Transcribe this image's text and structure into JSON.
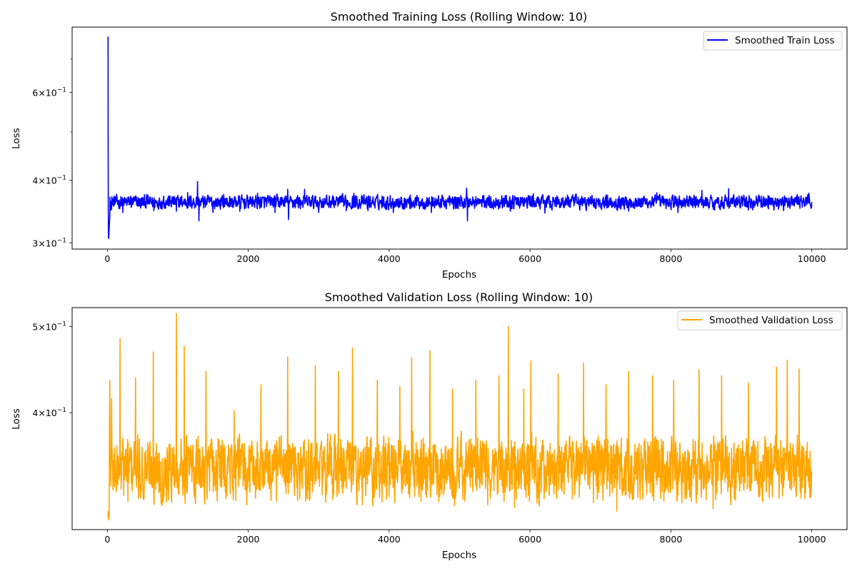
{
  "chart_data": [
    {
      "type": "line",
      "title": "Smoothed Training Loss (Rolling Window: 10)",
      "xlabel": "Epochs",
      "ylabel": "Loss",
      "yscale": "log",
      "xlim": [
        -500,
        10500
      ],
      "ylim": [
        0.2915,
        0.81
      ],
      "xticks": [
        {
          "value": 0,
          "label": "0"
        },
        {
          "value": 2000,
          "label": "2000"
        },
        {
          "value": 4000,
          "label": "4000"
        },
        {
          "value": 6000,
          "label": "6000"
        },
        {
          "value": 8000,
          "label": "8000"
        },
        {
          "value": 10000,
          "label": "10000"
        }
      ],
      "yticks_major": [
        {
          "value": 0.3,
          "mantissa": "3",
          "base": "10",
          "exponent": "−1"
        },
        {
          "value": 0.4,
          "mantissa": "4",
          "base": "10",
          "exponent": "−1"
        },
        {
          "value": 0.6,
          "mantissa": "6",
          "base": "10",
          "exponent": "−1"
        }
      ],
      "yticks_minor": [
        0.5,
        0.7
      ],
      "legend": {
        "position": "upper-right",
        "label": "Smoothed Train Loss"
      },
      "grid": false,
      "series": [
        {
          "name": "Smoothed Train Loss",
          "color": "#0000ff",
          "noise": {
            "seed": 12345,
            "x_start": 40,
            "x_end": 10000,
            "step": 4,
            "base": 0.362,
            "amplitude": 0.011
          },
          "x": [
            9,
            10,
            11,
            13,
            15,
            18,
            22,
            28,
            35,
            38,
            45,
            60,
            110,
            220,
            330,
            470,
            560,
            660,
            800,
            980,
            1140,
            1280,
            1300,
            1500,
            1650,
            1880,
            2130,
            2380,
            2560,
            2570,
            2700,
            2800,
            3000,
            3200,
            3390,
            3500,
            3700,
            3900,
            4060,
            4300,
            4600,
            4850,
            5100,
            5110,
            5400,
            5720,
            6000,
            6210,
            6530,
            6800,
            7100,
            7400,
            7620,
            7800,
            8100,
            8440,
            8620,
            8820,
            9100,
            9380,
            9600,
            9800,
            9960,
            10000
          ],
          "y": [
            0.775,
            0.775,
            0.52,
            0.36,
            0.31,
            0.306,
            0.31,
            0.325,
            0.34,
            0.37,
            0.36,
            0.35,
            0.37,
            0.345,
            0.372,
            0.352,
            0.375,
            0.348,
            0.372,
            0.347,
            0.378,
            0.398,
            0.332,
            0.345,
            0.375,
            0.347,
            0.377,
            0.345,
            0.384,
            0.334,
            0.373,
            0.384,
            0.345,
            0.373,
            0.348,
            0.377,
            0.348,
            0.372,
            0.345,
            0.374,
            0.345,
            0.371,
            0.386,
            0.332,
            0.37,
            0.347,
            0.372,
            0.344,
            0.374,
            0.348,
            0.373,
            0.347,
            0.372,
            0.378,
            0.345,
            0.382,
            0.349,
            0.385,
            0.349,
            0.373,
            0.348,
            0.371,
            0.377,
            0.362
          ]
        }
      ]
    },
    {
      "type": "line",
      "title": "Smoothed Validation Loss (Rolling Window: 10)",
      "xlabel": "Epochs",
      "ylabel": "Loss",
      "yscale": "log",
      "xlim": [
        -500,
        10500
      ],
      "ylim": [
        0.2955,
        0.525
      ],
      "xticks": [
        {
          "value": 0,
          "label": "0"
        },
        {
          "value": 2000,
          "label": "2000"
        },
        {
          "value": 4000,
          "label": "4000"
        },
        {
          "value": 6000,
          "label": "6000"
        },
        {
          "value": 8000,
          "label": "8000"
        },
        {
          "value": 10000,
          "label": "10000"
        }
      ],
      "yticks_major": [
        {
          "value": 0.4,
          "mantissa": "4",
          "base": "10",
          "exponent": "−1"
        },
        {
          "value": 0.5,
          "mantissa": "5",
          "base": "10",
          "exponent": "−1"
        }
      ],
      "yticks_minor": [],
      "legend": {
        "position": "upper-right",
        "label": "Smoothed Validation Loss"
      },
      "grid": false,
      "series": [
        {
          "name": "Smoothed Validation Loss",
          "color": "#ffa500",
          "noise": {
            "seed": 67890,
            "x_start": 40,
            "x_end": 10000,
            "step": 4,
            "base": 0.347,
            "amplitude": 0.027
          },
          "x": [
            9,
            12,
            15,
            20,
            25,
            30,
            35,
            45,
            60,
            100,
            180,
            290,
            400,
            520,
            650,
            770,
            980,
            1090,
            1250,
            1400,
            1560,
            1800,
            1980,
            2180,
            2400,
            2560,
            2730,
            2950,
            3100,
            3280,
            3480,
            3620,
            3830,
            4000,
            4150,
            4320,
            4450,
            4580,
            4720,
            4900,
            5070,
            5230,
            5400,
            5560,
            5690,
            5780,
            5910,
            6010,
            6200,
            6400,
            6600,
            6760,
            6900,
            7080,
            7230,
            7400,
            7600,
            7740,
            7900,
            8040,
            8200,
            8400,
            8600,
            8720,
            8900,
            9100,
            9300,
            9500,
            9650,
            9820,
            9960,
            10000
          ],
          "y": [
            0.305,
            0.31,
            0.305,
            0.303,
            0.307,
            0.39,
            0.435,
            0.36,
            0.415,
            0.33,
            0.485,
            0.318,
            0.438,
            0.32,
            0.468,
            0.318,
            0.517,
            0.475,
            0.316,
            0.445,
            0.318,
            0.402,
            0.315,
            0.43,
            0.318,
            0.462,
            0.32,
            0.452,
            0.317,
            0.445,
            0.473,
            0.315,
            0.435,
            0.322,
            0.428,
            0.461,
            0.318,
            0.47,
            0.322,
            0.425,
            0.318,
            0.435,
            0.315,
            0.44,
            0.5,
            0.313,
            0.425,
            0.457,
            0.32,
            0.442,
            0.32,
            0.455,
            0.317,
            0.43,
            0.31,
            0.445,
            0.32,
            0.44,
            0.318,
            0.435,
            0.32,
            0.447,
            0.312,
            0.44,
            0.32,
            0.432,
            0.318,
            0.45,
            0.458,
            0.448,
            0.33,
            0.34
          ]
        }
      ]
    }
  ]
}
